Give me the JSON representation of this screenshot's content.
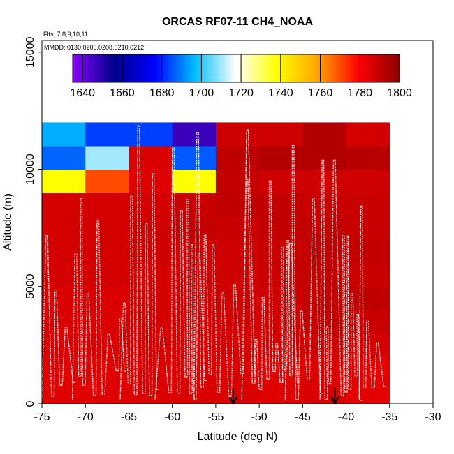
{
  "chart_data": {
    "type": "heatmap",
    "title": "ORCAS RF07-11 CH4_NOAA",
    "annotations": [
      "Flts: 7,8,9,10,11",
      "MMDD: 0130,0205,0208,0210,0212"
    ],
    "xlabel": "Latitude (deg N)",
    "ylabel": "Altitude (m)",
    "xlim": [
      -75,
      -30
    ],
    "ylim": [
      0,
      15500
    ],
    "x_ticks": [
      -75,
      -70,
      -65,
      -60,
      -55,
      -50,
      -45,
      -40,
      -35,
      -30
    ],
    "x_tick_labels": [
      "-75",
      "-70",
      "-65",
      "-60",
      "-55",
      "-50",
      "-45",
      "-40",
      "-35",
      "-30"
    ],
    "y_ticks": [
      0,
      5000,
      10000,
      15000
    ],
    "y_tick_labels": [
      "0",
      "5000",
      "10000",
      "15000"
    ],
    "colorbar": {
      "min": 1635,
      "max": 1800,
      "ticks": [
        1640,
        1660,
        1680,
        1700,
        1720,
        1740,
        1760,
        1780,
        1800
      ],
      "tick_labels": [
        "1640",
        "1660",
        "1680",
        "1700",
        "1720",
        "1740",
        "1760",
        "1780",
        "1800"
      ]
    },
    "grid": {
      "lat_edges": [
        -75,
        -70,
        -65,
        -60,
        -55,
        -50,
        -45,
        -40,
        -35
      ],
      "alt_edges": [
        0,
        2000,
        3000,
        4000,
        5000,
        6000,
        7000,
        8000,
        9000,
        10000,
        11000,
        12000
      ],
      "values": [
        [
          1785,
          1785,
          1786,
          1786,
          1786,
          1785,
          1786,
          1784
        ],
        [
          1786,
          1786,
          1787,
          1786,
          1787,
          1787,
          1788,
          1787
        ],
        [
          1786,
          1786,
          1787,
          1787,
          1787,
          1788,
          1790,
          1789
        ],
        [
          1786,
          1786,
          1787,
          1787,
          1788,
          1788,
          1790,
          1791
        ],
        [
          1787,
          1787,
          1787,
          1788,
          1788,
          1789,
          1790,
          1789
        ],
        [
          1787,
          1787,
          1788,
          1788,
          1788,
          1789,
          1790,
          1790
        ],
        [
          1787,
          1787,
          1788,
          1790,
          1789,
          1790,
          1790,
          1789
        ],
        [
          1787,
          1787,
          1787,
          1789,
          1791,
          1790,
          1789,
          1789
        ],
        [
          1738,
          1770,
          1785,
          1738,
          1790,
          1788,
          1788,
          1788
        ],
        [
          1687,
          1710,
          1786,
          1686,
          1791,
          1793,
          1793,
          1792
        ],
        [
          1695,
          1683,
          1683,
          1647,
          1788,
          1788,
          1793,
          1787
        ]
      ]
    },
    "markers": [
      {
        "lat": -53,
        "label": "arrow"
      },
      {
        "lat": -41.3,
        "label": "arrow"
      }
    ]
  },
  "colors": {
    "axis": "#000000",
    "track": "#ffffff",
    "colormap": [
      "#8b00ff",
      "#00008b",
      "#0000ff",
      "#00bfff",
      "#ffffff",
      "#ffff00",
      "#ffa500",
      "#ff0000",
      "#8b0000"
    ]
  }
}
